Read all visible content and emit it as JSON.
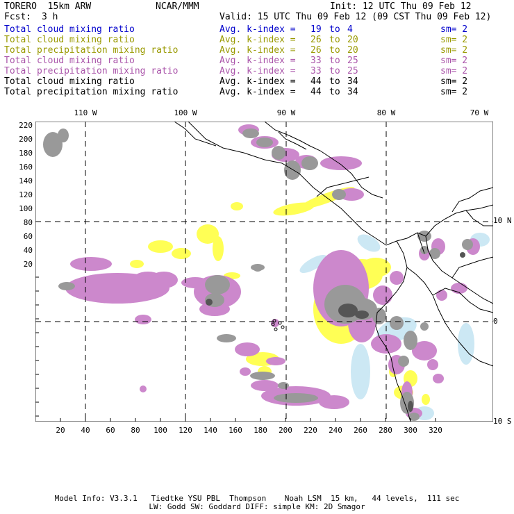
{
  "header": {
    "model": "TORERO  15km ARW",
    "org": "NCAR/MMM",
    "init": "Init: 12 UTC Thu 09 Feb 12",
    "fcst_label": "Fcst:",
    "fcst_value": "3 h",
    "valid": "Valid: 15 UTC Thu 09 Feb 12 (09 CST Thu 09 Feb 12)"
  },
  "legend": [
    {
      "field": "Total cloud mixing ratio",
      "kidx": "Avg. k-index =",
      "from": "19",
      "to_word": "to",
      "to": "4",
      "sm": "sm= 2",
      "color": "#0000cc"
    },
    {
      "field": "Total cloud mixing ratio",
      "kidx": "Avg. k-index =",
      "from": "26",
      "to_word": "to",
      "to": "20",
      "sm": "sm= 2",
      "color": "#999900"
    },
    {
      "field": "Total precipitation mixing ratio",
      "kidx": "Avg. k-index =",
      "from": "26",
      "to_word": "to",
      "to": "20",
      "sm": "sm= 2",
      "color": "#999900"
    },
    {
      "field": "Total cloud mixing ratio",
      "kidx": "Avg. k-index =",
      "from": "33",
      "to_word": "to",
      "to": "25",
      "sm": "sm= 2",
      "color": "#aa55aa"
    },
    {
      "field": "Total precipitation mixing ratio",
      "kidx": "Avg. k-index =",
      "from": "33",
      "to_word": "to",
      "to": "25",
      "sm": "sm= 2",
      "color": "#aa55aa"
    },
    {
      "field": "Total cloud mixing ratio",
      "kidx": "Avg. k-index =",
      "from": "44",
      "to_word": "to",
      "to": "34",
      "sm": "sm= 2",
      "color": "#000000"
    },
    {
      "field": "Total precipitation mixing ratio",
      "kidx": "Avg. k-index =",
      "from": "44",
      "to_word": "to",
      "to": "34",
      "sm": "sm= 2",
      "color": "#000000"
    }
  ],
  "axes": {
    "top_lon_labels": [
      "110 W",
      "100 W",
      "90 W",
      "80 W",
      "70 W"
    ],
    "right_lat_labels": [
      "10 N",
      "0",
      "10 S"
    ],
    "y_ticks": [
      "220",
      "200",
      "180",
      "160",
      "140",
      "120",
      "100",
      "80",
      "60",
      "40",
      "20"
    ],
    "x_ticks": [
      "20",
      "40",
      "60",
      "80",
      "100",
      "120",
      "140",
      "160",
      "180",
      "200",
      "220",
      "240",
      "260",
      "280",
      "300",
      "320"
    ]
  },
  "map_colors": {
    "yellow": "#ffff55",
    "purple": "#cc88cc",
    "gray": "#999999",
    "darkgray": "#555555",
    "lightblue": "#cce8f4",
    "coast": "#000000"
  },
  "footer": {
    "line1": "Model Info: V3.3.1   Tiedtke YSU PBL  Thompson    Noah LSM  15 km,   44 levels,  111 sec",
    "line2": "LW: Godd SW: Goddard DIFF: simple KM: 2D Smagor"
  }
}
